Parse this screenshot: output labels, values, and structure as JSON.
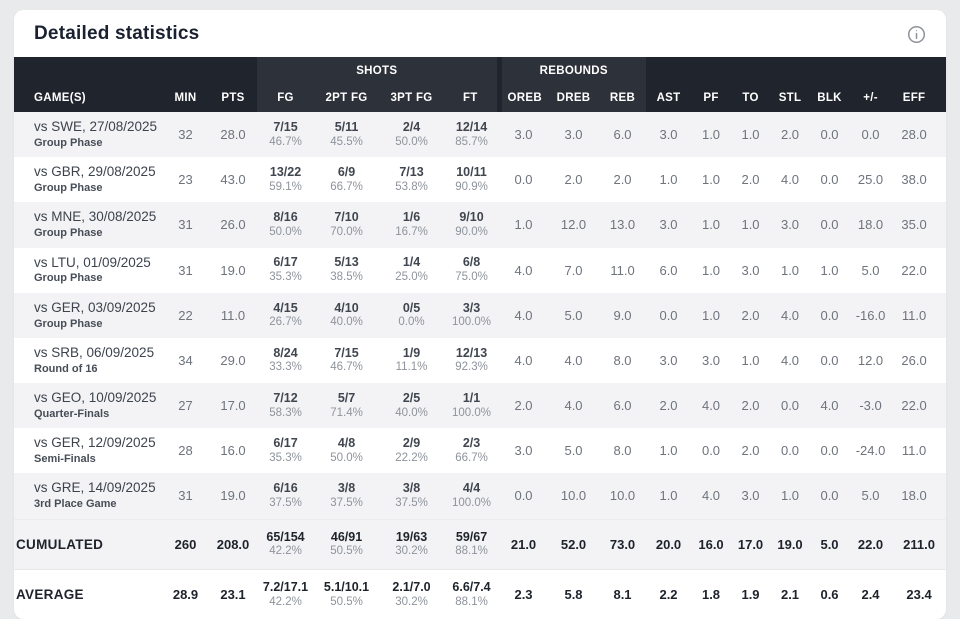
{
  "title": "Detailed statistics",
  "info_icon": "info-circle",
  "colors": {
    "header_dark": "#20242c",
    "header_band": "#2d313a",
    "zebra_gray": "#f3f3f5",
    "card_bg": "#ffffff",
    "page_bg": "#e9eaeb"
  },
  "table": {
    "groups": [
      {
        "label": "SHOTS",
        "span": 4
      },
      {
        "label": "REBOUNDS",
        "span": 3
      }
    ],
    "columns": [
      "GAME(S)",
      "MIN",
      "PTS",
      "FG",
      "2PT FG",
      "3PT FG",
      "FT",
      "OREB",
      "DREB",
      "REB",
      "AST",
      "PF",
      "TO",
      "STL",
      "BLK",
      "+/-",
      "EFF"
    ],
    "stat_keys": [
      "oreb",
      "dreb",
      "reb",
      "ast",
      "pf",
      "to",
      "stl",
      "blk",
      "plusminus",
      "eff"
    ],
    "rows": [
      {
        "game": "vs SWE, 27/08/2025",
        "phase": "Group Phase",
        "min": "32",
        "pts": "28.0",
        "shots": [
          [
            "7/15",
            "46.7%"
          ],
          [
            "5/11",
            "45.5%"
          ],
          [
            "2/4",
            "50.0%"
          ],
          [
            "12/14",
            "85.7%"
          ]
        ],
        "stats": [
          "3.0",
          "3.0",
          "6.0",
          "3.0",
          "1.0",
          "1.0",
          "2.0",
          "0.0",
          "0.0",
          "28.0"
        ]
      },
      {
        "game": "vs GBR, 29/08/2025",
        "phase": "Group Phase",
        "min": "23",
        "pts": "43.0",
        "shots": [
          [
            "13/22",
            "59.1%"
          ],
          [
            "6/9",
            "66.7%"
          ],
          [
            "7/13",
            "53.8%"
          ],
          [
            "10/11",
            "90.9%"
          ]
        ],
        "stats": [
          "0.0",
          "2.0",
          "2.0",
          "1.0",
          "1.0",
          "2.0",
          "4.0",
          "0.0",
          "25.0",
          "38.0"
        ]
      },
      {
        "game": "vs MNE, 30/08/2025",
        "phase": "Group Phase",
        "min": "31",
        "pts": "26.0",
        "shots": [
          [
            "8/16",
            "50.0%"
          ],
          [
            "7/10",
            "70.0%"
          ],
          [
            "1/6",
            "16.7%"
          ],
          [
            "9/10",
            "90.0%"
          ]
        ],
        "stats": [
          "1.0",
          "12.0",
          "13.0",
          "3.0",
          "1.0",
          "1.0",
          "3.0",
          "0.0",
          "18.0",
          "35.0"
        ]
      },
      {
        "game": "vs LTU, 01/09/2025",
        "phase": "Group Phase",
        "min": "31",
        "pts": "19.0",
        "shots": [
          [
            "6/17",
            "35.3%"
          ],
          [
            "5/13",
            "38.5%"
          ],
          [
            "1/4",
            "25.0%"
          ],
          [
            "6/8",
            "75.0%"
          ]
        ],
        "stats": [
          "4.0",
          "7.0",
          "11.0",
          "6.0",
          "1.0",
          "3.0",
          "1.0",
          "1.0",
          "5.0",
          "22.0"
        ]
      },
      {
        "game": "vs GER, 03/09/2025",
        "phase": "Group Phase",
        "min": "22",
        "pts": "11.0",
        "shots": [
          [
            "4/15",
            "26.7%"
          ],
          [
            "4/10",
            "40.0%"
          ],
          [
            "0/5",
            "0.0%"
          ],
          [
            "3/3",
            "100.0%"
          ]
        ],
        "stats": [
          "4.0",
          "5.0",
          "9.0",
          "0.0",
          "1.0",
          "2.0",
          "4.0",
          "0.0",
          "-16.0",
          "11.0"
        ]
      },
      {
        "game": "vs SRB, 06/09/2025",
        "phase": "Round of 16",
        "min": "34",
        "pts": "29.0",
        "shots": [
          [
            "8/24",
            "33.3%"
          ],
          [
            "7/15",
            "46.7%"
          ],
          [
            "1/9",
            "11.1%"
          ],
          [
            "12/13",
            "92.3%"
          ]
        ],
        "stats": [
          "4.0",
          "4.0",
          "8.0",
          "3.0",
          "3.0",
          "1.0",
          "4.0",
          "0.0",
          "12.0",
          "26.0"
        ]
      },
      {
        "game": "vs GEO, 10/09/2025",
        "phase": "Quarter-Finals",
        "min": "27",
        "pts": "17.0",
        "shots": [
          [
            "7/12",
            "58.3%"
          ],
          [
            "5/7",
            "71.4%"
          ],
          [
            "2/5",
            "40.0%"
          ],
          [
            "1/1",
            "100.0%"
          ]
        ],
        "stats": [
          "2.0",
          "4.0",
          "6.0",
          "2.0",
          "4.0",
          "2.0",
          "0.0",
          "4.0",
          "-3.0",
          "22.0"
        ]
      },
      {
        "game": "vs GER, 12/09/2025",
        "phase": "Semi-Finals",
        "min": "28",
        "pts": "16.0",
        "shots": [
          [
            "6/17",
            "35.3%"
          ],
          [
            "4/8",
            "50.0%"
          ],
          [
            "2/9",
            "22.2%"
          ],
          [
            "2/3",
            "66.7%"
          ]
        ],
        "stats": [
          "3.0",
          "5.0",
          "8.0",
          "1.0",
          "0.0",
          "2.0",
          "0.0",
          "0.0",
          "-24.0",
          "11.0"
        ]
      },
      {
        "game": "vs GRE, 14/09/2025",
        "phase": "3rd Place Game",
        "min": "31",
        "pts": "19.0",
        "shots": [
          [
            "6/16",
            "37.5%"
          ],
          [
            "3/8",
            "37.5%"
          ],
          [
            "3/8",
            "37.5%"
          ],
          [
            "4/4",
            "100.0%"
          ]
        ],
        "stats": [
          "0.0",
          "10.0",
          "10.0",
          "1.0",
          "4.0",
          "3.0",
          "1.0",
          "0.0",
          "5.0",
          "18.0"
        ]
      }
    ],
    "cumulated": {
      "label": "CUMULATED",
      "min": "260",
      "pts": "208.0",
      "shots": [
        [
          "65/154",
          "42.2%"
        ],
        [
          "46/91",
          "50.5%"
        ],
        [
          "19/63",
          "30.2%"
        ],
        [
          "59/67",
          "88.1%"
        ]
      ],
      "stats": [
        "21.0",
        "52.0",
        "73.0",
        "20.0",
        "16.0",
        "17.0",
        "19.0",
        "5.0",
        "22.0",
        "211.0"
      ]
    },
    "average": {
      "label": "AVERAGE",
      "min": "28.9",
      "pts": "23.1",
      "shots": [
        [
          "7.2/17.1",
          "42.2%"
        ],
        [
          "5.1/10.1",
          "50.5%"
        ],
        [
          "2.1/7.0",
          "30.2%"
        ],
        [
          "6.6/7.4",
          "88.1%"
        ]
      ],
      "stats": [
        "2.3",
        "5.8",
        "8.1",
        "2.2",
        "1.8",
        "1.9",
        "2.1",
        "0.6",
        "2.4",
        "23.4"
      ]
    }
  }
}
